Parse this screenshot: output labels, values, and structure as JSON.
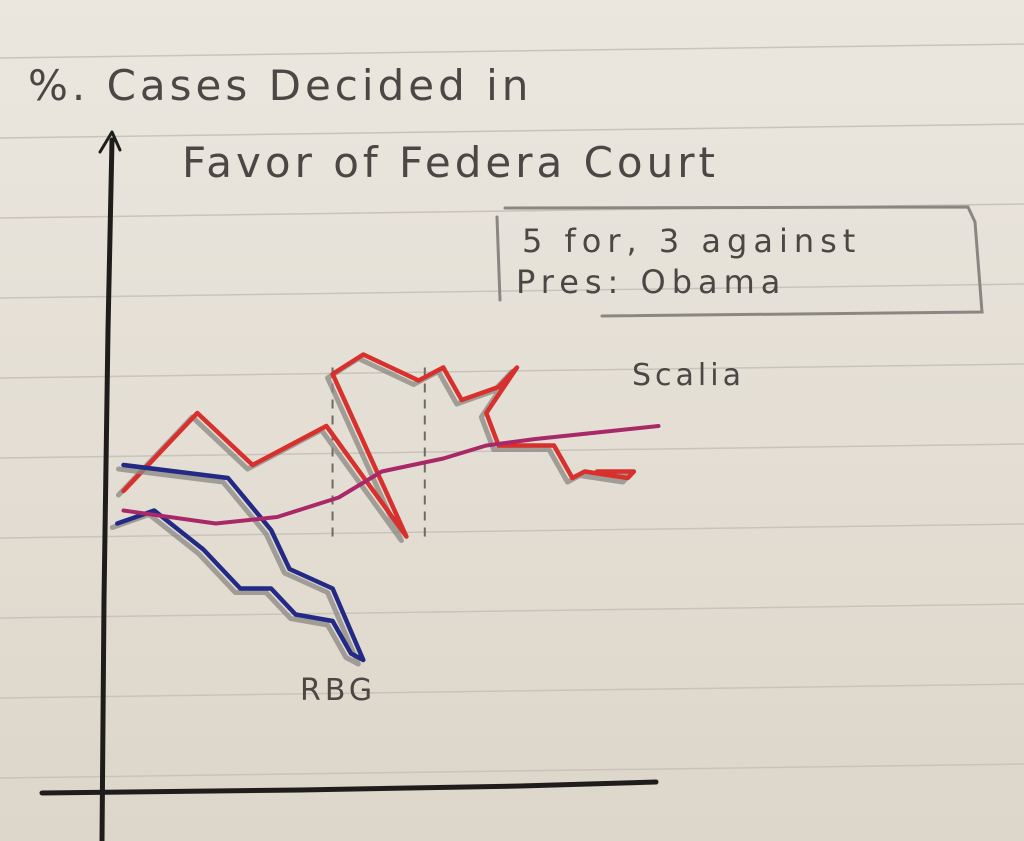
{
  "chart_data": {
    "type": "line",
    "title_line1": "%. Cases Decided in",
    "title_line2": "Favor of Federa Court",
    "annotation_line1": "5 for, 3 against",
    "annotation_line2": "Pres: Obama",
    "xlabel": "",
    "ylabel": "",
    "xlim": [
      0,
      100
    ],
    "ylim": [
      0,
      100
    ],
    "period_markers": [
      37,
      52
    ],
    "series": [
      {
        "name": "Scalia",
        "color": "#d8302c",
        "shadow_color": "#8a8782",
        "points": [
          [
            3,
            46
          ],
          [
            15,
            58
          ],
          [
            24,
            50
          ],
          [
            36,
            56
          ],
          [
            49,
            39
          ],
          [
            37,
            64
          ],
          [
            42,
            67
          ],
          [
            51,
            63
          ],
          [
            55,
            65
          ],
          [
            58,
            60
          ],
          [
            64,
            62
          ],
          [
            67,
            65
          ],
          [
            62,
            58
          ],
          [
            64,
            53
          ],
          [
            73,
            53
          ],
          [
            76,
            48
          ],
          [
            78,
            49
          ],
          [
            85,
            48
          ],
          [
            86,
            49
          ],
          [
            80,
            49
          ]
        ]
      },
      {
        "name": "RBG",
        "color": "#232a86",
        "shadow_color": "#8a8782",
        "points": [
          [
            2,
            41
          ],
          [
            8,
            43
          ],
          [
            16,
            37
          ],
          [
            22,
            31
          ],
          [
            27,
            31
          ],
          [
            31,
            27
          ],
          [
            37,
            26
          ],
          [
            40,
            21
          ],
          [
            42,
            20
          ],
          [
            37,
            31
          ],
          [
            30,
            34
          ],
          [
            27,
            40
          ],
          [
            20,
            48
          ],
          [
            3,
            50
          ]
        ]
      },
      {
        "name": "",
        "color": "#a82868",
        "shadow_color": "",
        "points": [
          [
            3,
            43
          ],
          [
            18,
            41
          ],
          [
            28,
            42
          ],
          [
            38,
            45
          ],
          [
            45,
            49
          ],
          [
            55,
            51
          ],
          [
            62,
            53
          ],
          [
            70,
            54
          ],
          [
            80,
            55
          ],
          [
            90,
            56
          ]
        ]
      }
    ]
  }
}
